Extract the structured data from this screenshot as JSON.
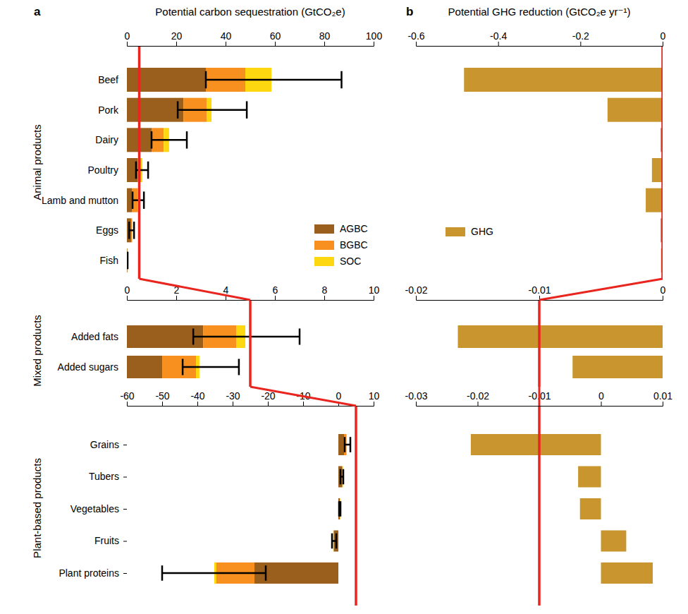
{
  "chart_data": [
    {
      "type": "bar",
      "orientation": "horizontal",
      "stacked": true,
      "panel_label": "a",
      "xlabel": "Potential carbon sequestration (GtCO₂e)",
      "group_label": "Animal products",
      "legend": "right",
      "categories": [
        "Beef",
        "Pork",
        "Dairy",
        "Poultry",
        "Lamb and mutton",
        "Eggs",
        "Fish"
      ],
      "series": [
        {
          "name": "AGBC",
          "color": "#9a5f1d",
          "values": [
            32,
            22.9,
            10,
            4.3,
            2,
            1.7,
            0.2
          ]
        },
        {
          "name": "BGBC",
          "color": "#f7901e",
          "values": [
            16,
            9.4,
            4.9,
            1.4,
            2.3,
            0.4,
            0.05
          ]
        },
        {
          "name": "SOC",
          "color": "#fdd70f",
          "values": [
            10.6,
            2,
            2.2,
            0.6,
            0.3,
            0.1,
            0
          ]
        }
      ],
      "error_bars": [
        [
          32,
          87
        ],
        [
          20.6,
          48.6
        ],
        [
          10,
          24.3
        ],
        [
          3.7,
          8.6
        ],
        [
          2.3,
          6.9
        ],
        [
          0.9,
          2.9
        ],
        [
          0.1,
          0.3
        ]
      ],
      "xlim": [
        0,
        100
      ],
      "xticks": [
        0,
        20,
        40,
        60,
        80,
        100
      ],
      "reference_line": 5
    },
    {
      "type": "bar",
      "orientation": "horizontal",
      "stacked": true,
      "group_label": "Mixed products",
      "categories": [
        "Added fats",
        "Added sugars"
      ],
      "series": [
        {
          "color": "#9a5f1d",
          "values": [
            3.09,
            1.43
          ]
        },
        {
          "color": "#f7901e",
          "values": [
            1.34,
            1.37
          ]
        },
        {
          "color": "#fdd70f",
          "values": [
            0.37,
            0.14
          ]
        }
      ],
      "error_bars": [
        [
          2.69,
          7
        ],
        [
          2.26,
          4.54
        ]
      ],
      "xlim": [
        0,
        10
      ],
      "xticks": [
        0,
        2,
        4,
        6,
        8,
        10
      ],
      "reference_line": 5
    },
    {
      "type": "bar",
      "orientation": "horizontal",
      "stacked": true,
      "group_label": "Plant-based products",
      "categories": [
        "Grains",
        "Tubers",
        "Vegetables",
        "Fruits",
        "Plant proteins"
      ],
      "series": [
        {
          "color": "#9a5f1d",
          "values": [
            1.6,
            1.0,
            0.4,
            -1.2,
            -23.8
          ]
        },
        {
          "color": "#f7901e",
          "values": [
            0.6,
            0.2,
            0.1,
            -0.2,
            -10.8
          ]
        },
        {
          "color": "#fdd70f",
          "values": [
            0.2,
            0.1,
            0.05,
            -0.05,
            -0.6
          ]
        }
      ],
      "error_bars": [
        [
          1.8,
          3.4
        ],
        [
          0.6,
          1.4
        ],
        [
          0.2,
          0.6
        ],
        [
          -1.8,
          -0.6
        ],
        [
          -50,
          -20.6
        ]
      ],
      "xlim": [
        -60,
        10
      ],
      "xticks": [
        -60,
        -50,
        -40,
        -30,
        -20,
        -10,
        0,
        10
      ],
      "reference_line": 5
    },
    {
      "type": "bar",
      "orientation": "horizontal",
      "panel_label": "b",
      "xlabel": "Potential GHG reduction (GtCO₂e yr⁻¹)",
      "legend": "left",
      "tick_labels": "x",
      "categories": [
        "Beef",
        "Pork",
        "Dairy",
        "Poultry",
        "Lamb and mutton",
        "Eggs",
        "Fish"
      ],
      "series": [
        {
          "name": "GHG",
          "color": "#c8952f",
          "values": [
            -0.483,
            -0.134,
            -0.005,
            -0.026,
            -0.041,
            -0.005,
            -0.004
          ]
        }
      ],
      "xlim": [
        -0.6,
        0
      ],
      "xticks": [
        -0.6,
        -0.4,
        -0.2,
        0
      ],
      "reference_line": 0
    },
    {
      "type": "bar",
      "orientation": "horizontal",
      "tick_labels": "x",
      "categories": [
        "Added fats",
        "Added sugars"
      ],
      "series": [
        {
          "color": "#c8952f",
          "values": [
            -0.0166,
            -0.0073
          ]
        }
      ],
      "xlim": [
        -0.02,
        0
      ],
      "xticks": [
        -0.02,
        -0.01,
        0
      ],
      "reference_line": -0.01
    },
    {
      "type": "bar",
      "orientation": "horizontal",
      "tick_labels": "x",
      "categories": [
        "Grains",
        "Tubers",
        "Vegetables",
        "Fruits",
        "Plant proteins"
      ],
      "series": [
        {
          "color": "#c8952f",
          "values": [
            -0.0211,
            -0.0037,
            -0.0034,
            0.0041,
            0.0084
          ]
        }
      ],
      "xlim": [
        -0.03,
        0.01
      ],
      "xticks": [
        -0.03,
        -0.02,
        -0.01,
        0,
        0.01
      ],
      "reference_line": -0.01
    }
  ]
}
